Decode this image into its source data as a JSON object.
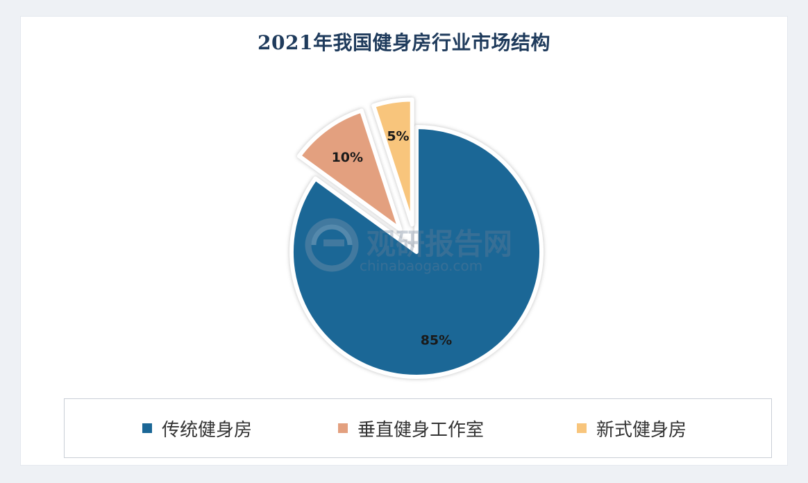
{
  "chart_data": {
    "type": "pie",
    "title": "2021年我国健身房行业市场结构",
    "categories": [
      "传统健身房",
      "垂直健身工作室",
      "新式健身房"
    ],
    "values": [
      85,
      10,
      5
    ],
    "labels": [
      "85%",
      "10%",
      "5%"
    ],
    "colors": [
      "#1b6796",
      "#e3a07f",
      "#f8c57c"
    ],
    "exploded": [
      false,
      true,
      true
    ],
    "legend_position": "bottom"
  },
  "watermark": {
    "name": "观研报告网",
    "url": "chinabaogao.com"
  }
}
